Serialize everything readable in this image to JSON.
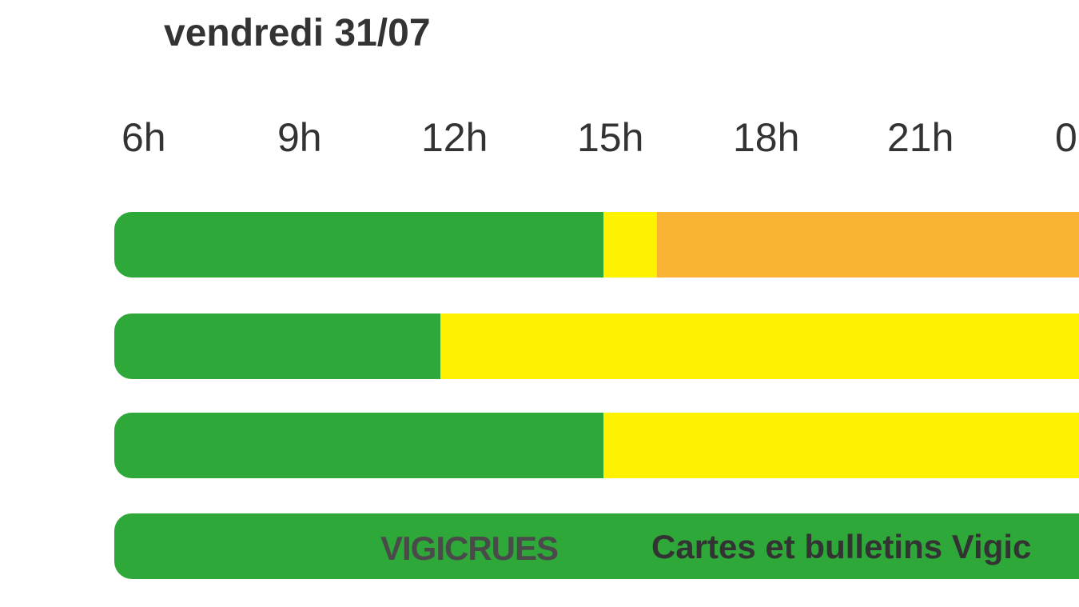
{
  "header": {
    "title": "vendredi 31/07"
  },
  "hours": [
    "6h",
    "9h",
    "12h",
    "15h",
    "18h",
    "21h",
    "0"
  ],
  "footer": {
    "logo": "VIGICRUES",
    "link": "Cartes et bulletins Vigic"
  }
}
